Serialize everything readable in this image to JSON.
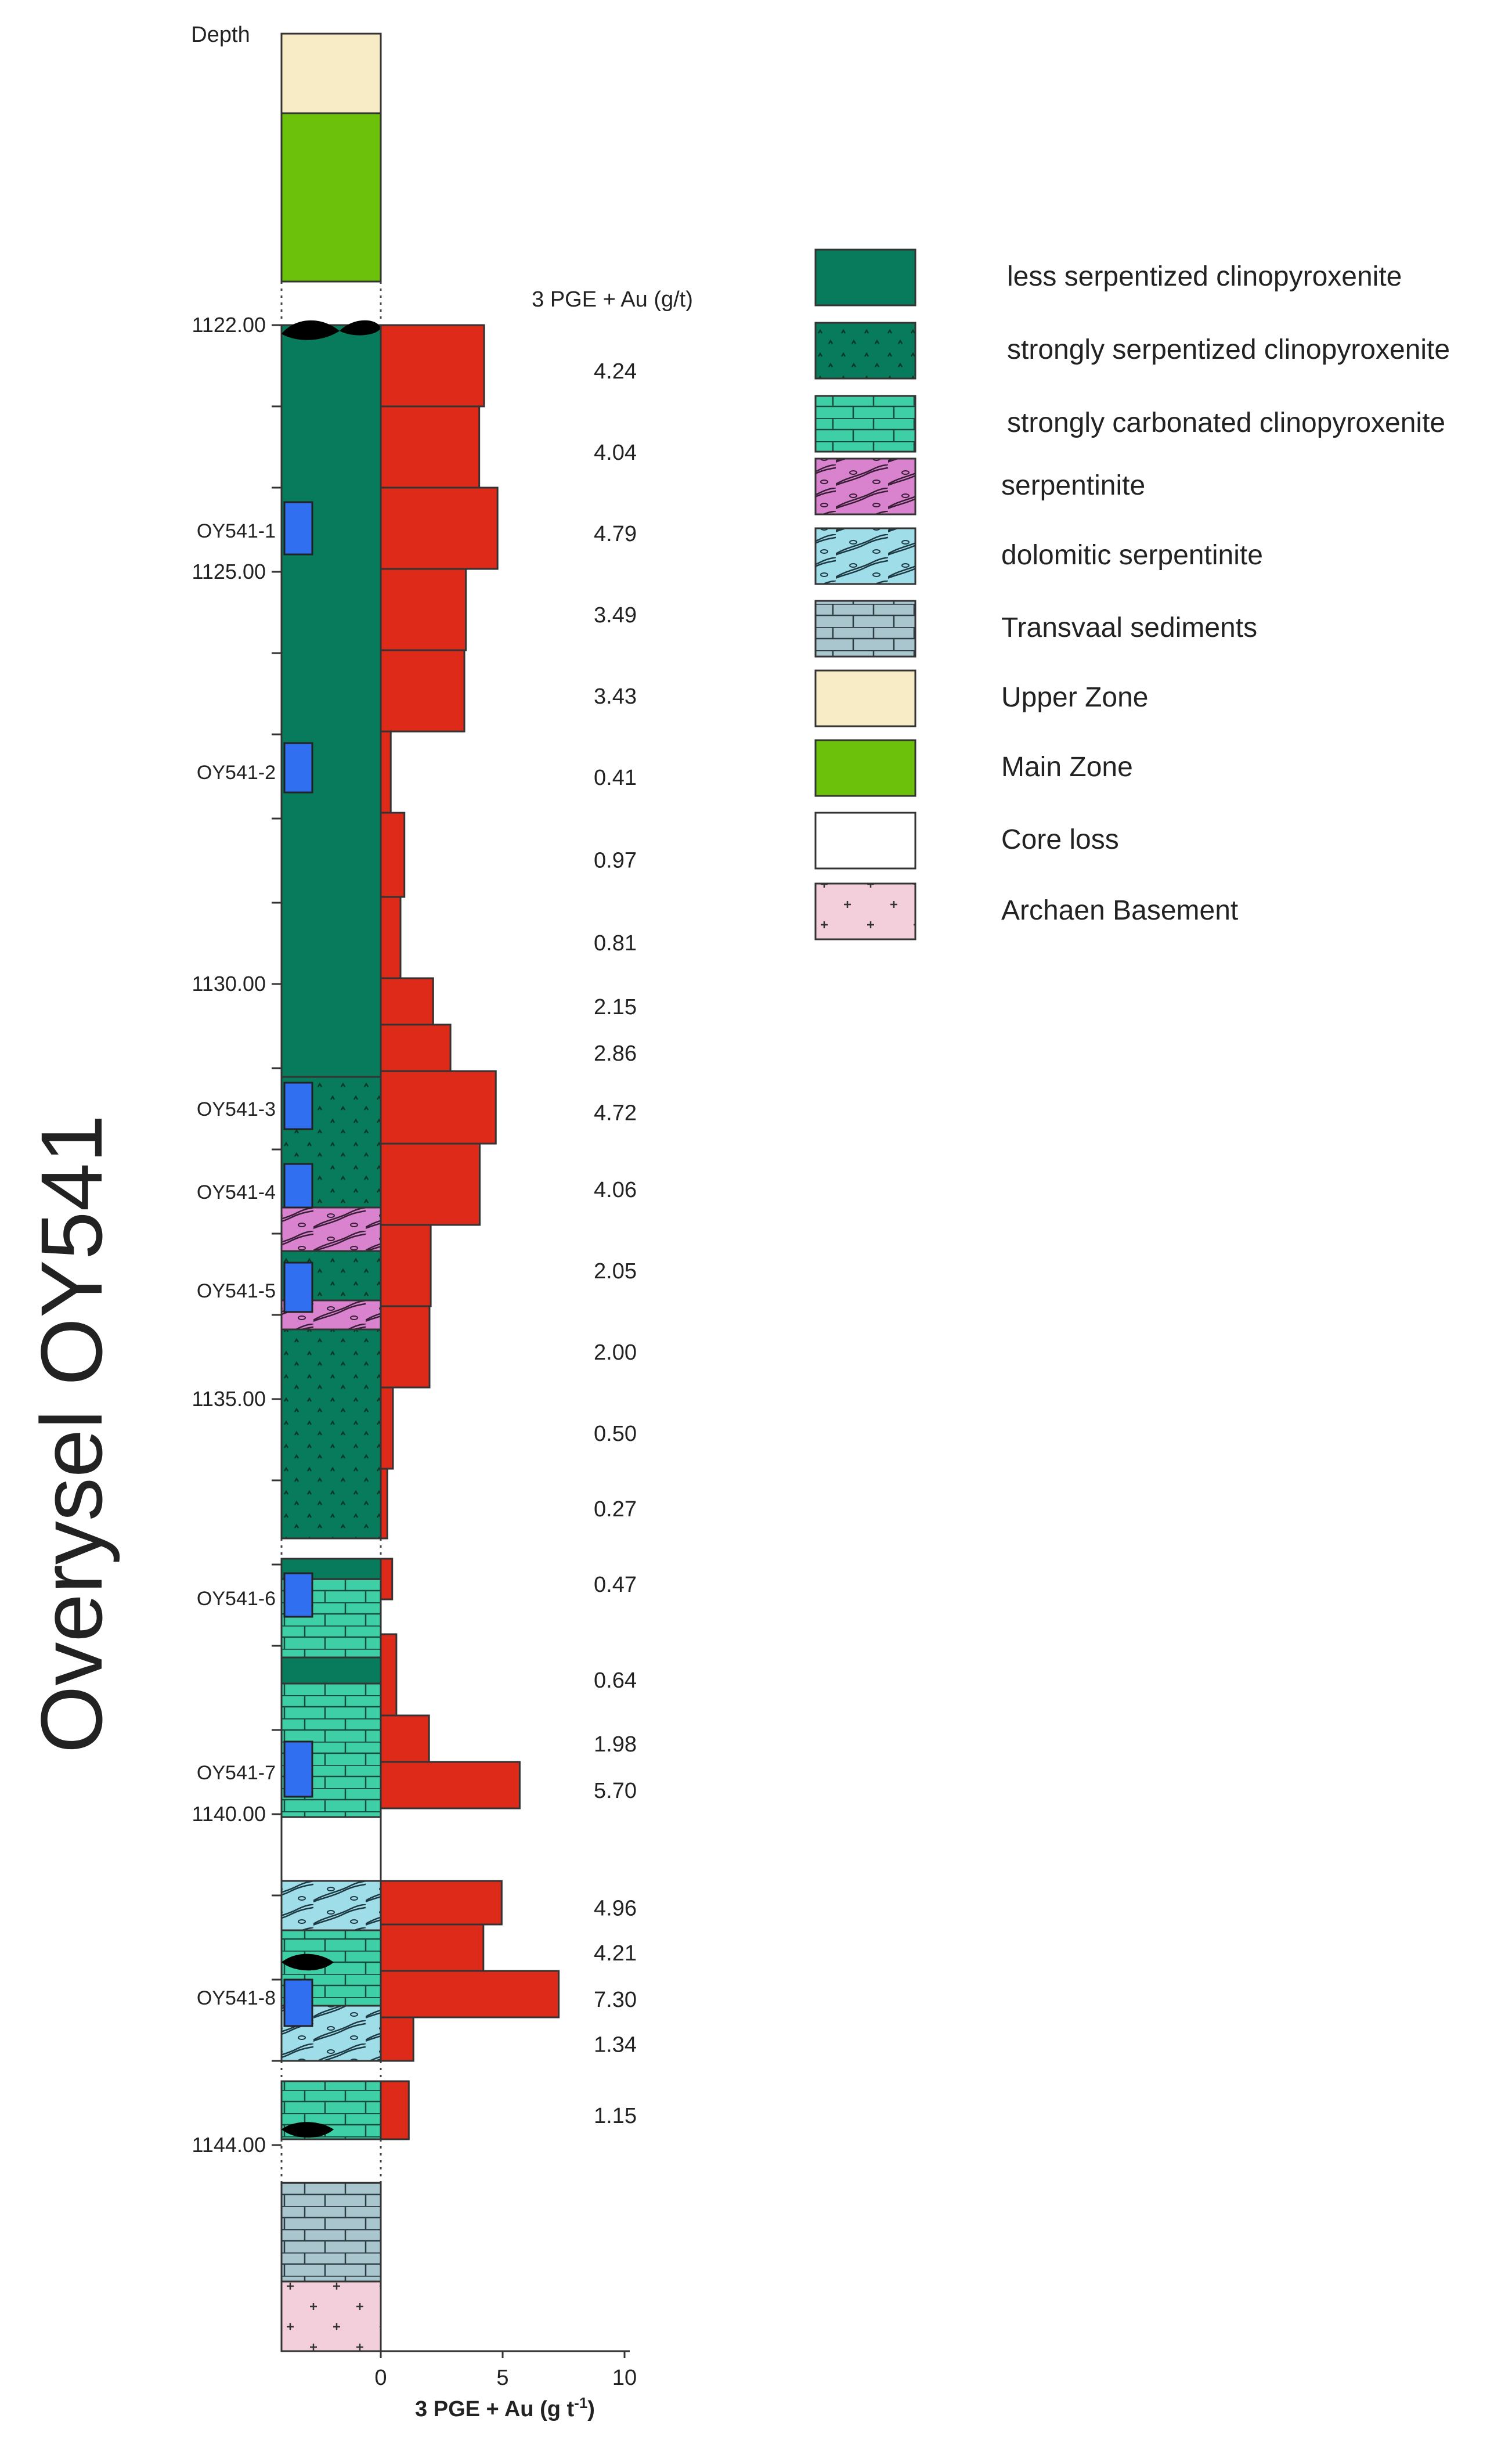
{
  "figure": {
    "title": "Overysel OY541",
    "depth_header": "Depth",
    "value_header": "3 PGE + Au (g/t)",
    "x_axis": {
      "label_main": "3 PGE + Au (g t",
      "label_sup": "-1",
      "label_close": ")",
      "ticks": [
        "0",
        "5",
        "10"
      ],
      "max": 10
    }
  },
  "legend": [
    {
      "key": "less_serp",
      "label": "less serpentized clinopyroxenite"
    },
    {
      "key": "strong_serp",
      "label": "strongly serpentized clinopyroxenite"
    },
    {
      "key": "carbonated",
      "label": "strongly carbonated clinopyroxenite"
    },
    {
      "key": "serpentinite",
      "label": "serpentinite"
    },
    {
      "key": "dolomitic",
      "label": "dolomitic serpentinite"
    },
    {
      "key": "transvaal",
      "label": "Transvaal sediments"
    },
    {
      "key": "upper_zone",
      "label": "Upper Zone"
    },
    {
      "key": "main_zone",
      "label": "Main Zone"
    },
    {
      "key": "core_loss",
      "label": "Core loss"
    },
    {
      "key": "basement",
      "label": "Archaen Basement"
    }
  ],
  "colors": {
    "less_serp": "#077b5c",
    "strong_serp": "#077b5c",
    "carbonated": "#3fcfa6",
    "serpentinite": "#d983cf",
    "dolomitic": "#9fdde9",
    "transvaal": "#a9c5cd",
    "upper_zone": "#f8ecc6",
    "main_zone": "#6cc20b",
    "core_loss": "#ffffff",
    "basement": "#f2cfdb",
    "bar": "#de2a18",
    "sample": "#2f6ff0"
  },
  "depth_labels": [
    "1122.00",
    "1125.00",
    "1130.00",
    "1135.00",
    "1140.00",
    "1144.00"
  ],
  "samples": [
    "OY541-1",
    "OY541-2",
    "OY541-3",
    "OY541-4",
    "OY541-5",
    "OY541-6",
    "OY541-7",
    "OY541-8"
  ],
  "chart_data": {
    "type": "bar",
    "orientation": "horizontal",
    "title": "3 PGE + Au (g/t)",
    "xlabel": "3 PGE + Au (g t-1)",
    "xlim": [
      0,
      10
    ],
    "values": [
      4.24,
      4.04,
      4.79,
      3.49,
      3.43,
      0.41,
      0.97,
      0.81,
      2.15,
      2.86,
      4.72,
      4.06,
      2.05,
      2.0,
      0.5,
      0.27,
      0.47,
      0.64,
      1.98,
      5.7,
      4.96,
      4.21,
      7.3,
      1.34,
      1.15
    ],
    "value_labels": [
      "4.24",
      "4.04",
      "4.79",
      "3.49",
      "3.43",
      "0.41",
      "0.97",
      "0.81",
      "2.15",
      "2.86",
      "4.72",
      "4.06",
      "2.05",
      "2.00",
      "0.50",
      "0.27",
      "0.47",
      "0.64",
      "1.98",
      "5.70",
      "4.96",
      "4.21",
      "7.30",
      "1.34",
      "1.15"
    ]
  }
}
